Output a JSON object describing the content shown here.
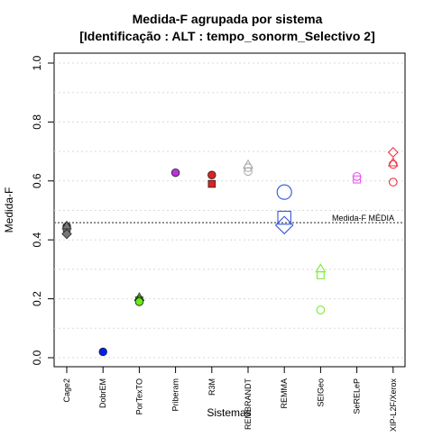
{
  "chart_data": {
    "type": "scatter",
    "title": "Medida-F agrupada por sistema",
    "subtitle": "[Identificação : ALT : tempo_sonorm_Selectivo 2]",
    "xlabel": "Sistemas",
    "ylabel": "Medida-F",
    "ylim": [
      0,
      1
    ],
    "yticks": [
      "0.0",
      "0.2",
      "0.4",
      "0.6",
      "0.8",
      "1.0"
    ],
    "grid": "horizontal dotted",
    "categories": [
      "Cage2",
      "DobrEM",
      "PorTexTO",
      "Priberam",
      "R3M",
      "REMBRANDT",
      "REMMA",
      "SEIGeo",
      "SeRELeP",
      "XIP-L2F/Xerox"
    ],
    "reference_line": {
      "label": "Medida-F MÉDIA",
      "value": 0.458
    },
    "series": [
      {
        "category": "Cage2",
        "color": "#777777",
        "points": [
          {
            "shape": "circle",
            "filled": true,
            "y": 0.445
          },
          {
            "shape": "square",
            "filled": true,
            "y": 0.44
          },
          {
            "shape": "triangle",
            "filled": true,
            "y": 0.448
          },
          {
            "shape": "diamond",
            "filled": true,
            "y": 0.42
          }
        ]
      },
      {
        "category": "DobrEM",
        "color": "#0022ee",
        "points": [
          {
            "shape": "circle",
            "filled": true,
            "y": 0.02
          }
        ]
      },
      {
        "category": "PorTexTO",
        "color": "#66ee11",
        "points": [
          {
            "shape": "triangle",
            "filled": true,
            "y": 0.205
          },
          {
            "shape": "square",
            "filled": true,
            "y": 0.195
          },
          {
            "shape": "diamond",
            "filled": true,
            "y": 0.195
          },
          {
            "shape": "circle",
            "filled": true,
            "y": 0.19
          }
        ]
      },
      {
        "category": "Priberam",
        "color": "#bb33dd",
        "points": [
          {
            "shape": "circle",
            "filled": true,
            "y": 0.628
          }
        ]
      },
      {
        "category": "R3M",
        "color": "#dd2222",
        "points": [
          {
            "shape": "circle",
            "filled": true,
            "y": 0.62
          },
          {
            "shape": "square",
            "filled": true,
            "y": 0.59
          }
        ]
      },
      {
        "category": "REMBRANDT",
        "color": "#aaaaaa",
        "points": [
          {
            "shape": "triangle",
            "filled": false,
            "y": 0.655
          },
          {
            "shape": "circle",
            "filled": false,
            "y": 0.645
          },
          {
            "shape": "circle",
            "filled": false,
            "y": 0.632
          }
        ]
      },
      {
        "category": "REMMA",
        "color": "#3355dd",
        "points": [
          {
            "shape": "circle",
            "filled": false,
            "size": "large",
            "y": 0.562
          },
          {
            "shape": "square",
            "filled": false,
            "size": "large",
            "y": 0.475
          },
          {
            "shape": "diamond",
            "filled": false,
            "size": "large",
            "y": 0.45
          }
        ]
      },
      {
        "category": "SEIGeo",
        "color": "#77ee33",
        "points": [
          {
            "shape": "triangle",
            "filled": false,
            "y": 0.302
          },
          {
            "shape": "square",
            "filled": false,
            "y": 0.28
          },
          {
            "shape": "circle",
            "filled": false,
            "y": 0.162
          }
        ]
      },
      {
        "category": "SeRELeP",
        "color": "#ee55ee",
        "points": [
          {
            "shape": "circle",
            "filled": false,
            "y": 0.615
          },
          {
            "shape": "square",
            "filled": false,
            "y": 0.605
          }
        ]
      },
      {
        "category": "XIP-L2F/Xerox",
        "color": "#ee3344",
        "points": [
          {
            "shape": "diamond",
            "filled": false,
            "y": 0.697
          },
          {
            "shape": "triangle",
            "filled": false,
            "y": 0.662
          },
          {
            "shape": "circle",
            "filled": false,
            "y": 0.656
          },
          {
            "shape": "circle",
            "filled": false,
            "y": 0.596
          }
        ]
      }
    ]
  }
}
